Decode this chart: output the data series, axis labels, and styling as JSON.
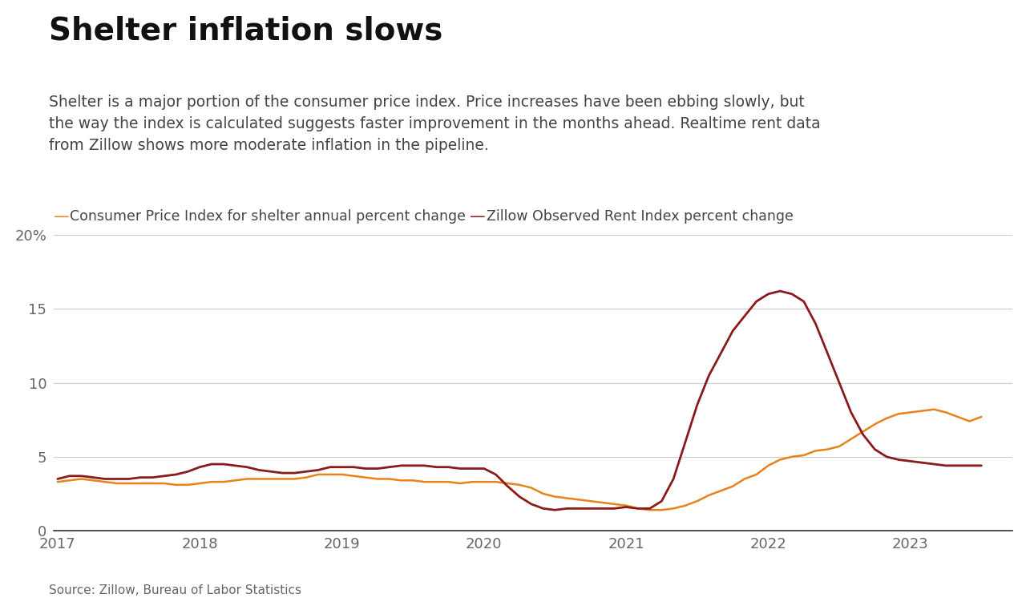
{
  "title": "Shelter inflation slows",
  "subtitle": "Shelter is a major portion of the consumer price index. Price increases have been ebbing slowly, but\nthe way the index is calculated suggests faster improvement in the months ahead. Realtime rent data\nfrom Zillow shows more moderate inflation in the pipeline.",
  "source": "Source: Zillow, Bureau of Labor Statistics",
  "legend_cpi": "Consumer Price Index for shelter annual percent change",
  "legend_zillow": "Zillow Observed Rent Index percent change",
  "cpi_color": "#E8821A",
  "zillow_color": "#8B1A1A",
  "background_color": "#FFFFFF",
  "ylim": [
    0,
    20
  ],
  "yticks": [
    0,
    5,
    10,
    15,
    20
  ],
  "xlim_left": 2016.97,
  "xlim_right": 2023.72,
  "xticks": [
    2017,
    2018,
    2019,
    2020,
    2021,
    2022,
    2023
  ],
  "cpi_x": [
    2017.0,
    2017.083,
    2017.167,
    2017.25,
    2017.333,
    2017.417,
    2017.5,
    2017.583,
    2017.667,
    2017.75,
    2017.833,
    2017.917,
    2018.0,
    2018.083,
    2018.167,
    2018.25,
    2018.333,
    2018.417,
    2018.5,
    2018.583,
    2018.667,
    2018.75,
    2018.833,
    2018.917,
    2019.0,
    2019.083,
    2019.167,
    2019.25,
    2019.333,
    2019.417,
    2019.5,
    2019.583,
    2019.667,
    2019.75,
    2019.833,
    2019.917,
    2020.0,
    2020.083,
    2020.167,
    2020.25,
    2020.333,
    2020.417,
    2020.5,
    2020.583,
    2020.667,
    2020.75,
    2020.833,
    2020.917,
    2021.0,
    2021.083,
    2021.167,
    2021.25,
    2021.333,
    2021.417,
    2021.5,
    2021.583,
    2021.667,
    2021.75,
    2021.833,
    2021.917,
    2022.0,
    2022.083,
    2022.167,
    2022.25,
    2022.333,
    2022.417,
    2022.5,
    2022.583,
    2022.667,
    2022.75,
    2022.833,
    2022.917,
    2023.0,
    2023.083,
    2023.167,
    2023.25,
    2023.333,
    2023.417,
    2023.5
  ],
  "cpi_y": [
    3.3,
    3.4,
    3.5,
    3.4,
    3.3,
    3.2,
    3.2,
    3.2,
    3.2,
    3.2,
    3.1,
    3.1,
    3.2,
    3.3,
    3.3,
    3.4,
    3.5,
    3.5,
    3.5,
    3.5,
    3.5,
    3.6,
    3.8,
    3.8,
    3.8,
    3.7,
    3.6,
    3.5,
    3.5,
    3.4,
    3.4,
    3.3,
    3.3,
    3.3,
    3.2,
    3.3,
    3.3,
    3.3,
    3.2,
    3.1,
    2.9,
    2.5,
    2.3,
    2.2,
    2.1,
    2.0,
    1.9,
    1.8,
    1.7,
    1.5,
    1.4,
    1.4,
    1.5,
    1.7,
    2.0,
    2.4,
    2.7,
    3.0,
    3.5,
    3.8,
    4.4,
    4.8,
    5.0,
    5.1,
    5.4,
    5.5,
    5.7,
    6.2,
    6.7,
    7.2,
    7.6,
    7.9,
    8.0,
    8.1,
    8.2,
    8.0,
    7.7,
    7.4,
    7.7
  ],
  "zillow_x": [
    2017.0,
    2017.083,
    2017.167,
    2017.25,
    2017.333,
    2017.417,
    2017.5,
    2017.583,
    2017.667,
    2017.75,
    2017.833,
    2017.917,
    2018.0,
    2018.083,
    2018.167,
    2018.25,
    2018.333,
    2018.417,
    2018.5,
    2018.583,
    2018.667,
    2018.75,
    2018.833,
    2018.917,
    2019.0,
    2019.083,
    2019.167,
    2019.25,
    2019.333,
    2019.417,
    2019.5,
    2019.583,
    2019.667,
    2019.75,
    2019.833,
    2019.917,
    2020.0,
    2020.083,
    2020.167,
    2020.25,
    2020.333,
    2020.417,
    2020.5,
    2020.583,
    2020.667,
    2020.75,
    2020.833,
    2020.917,
    2021.0,
    2021.083,
    2021.167,
    2021.25,
    2021.333,
    2021.417,
    2021.5,
    2021.583,
    2021.667,
    2021.75,
    2021.833,
    2021.917,
    2022.0,
    2022.083,
    2022.167,
    2022.25,
    2022.333,
    2022.417,
    2022.5,
    2022.583,
    2022.667,
    2022.75,
    2022.833,
    2022.917,
    2023.0,
    2023.083,
    2023.167,
    2023.25,
    2023.333,
    2023.417,
    2023.5
  ],
  "zillow_y": [
    3.5,
    3.7,
    3.7,
    3.6,
    3.5,
    3.5,
    3.5,
    3.6,
    3.6,
    3.7,
    3.8,
    4.0,
    4.3,
    4.5,
    4.5,
    4.4,
    4.3,
    4.1,
    4.0,
    3.9,
    3.9,
    4.0,
    4.1,
    4.3,
    4.3,
    4.3,
    4.2,
    4.2,
    4.3,
    4.4,
    4.4,
    4.4,
    4.3,
    4.3,
    4.2,
    4.2,
    4.2,
    3.8,
    3.0,
    2.3,
    1.8,
    1.5,
    1.4,
    1.5,
    1.5,
    1.5,
    1.5,
    1.5,
    1.6,
    1.5,
    1.5,
    2.0,
    3.5,
    6.0,
    8.5,
    10.5,
    12.0,
    13.5,
    14.5,
    15.5,
    16.0,
    16.2,
    16.0,
    15.5,
    14.0,
    12.0,
    10.0,
    8.0,
    6.5,
    5.5,
    5.0,
    4.8,
    4.7,
    4.6,
    4.5,
    4.4,
    4.4,
    4.4,
    4.4
  ]
}
